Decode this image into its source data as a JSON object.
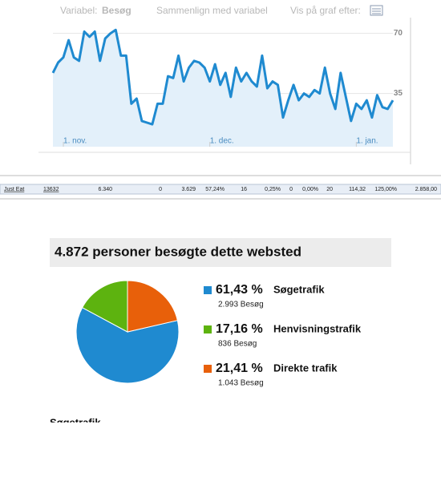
{
  "toolbar": {
    "variable_label": "Variabel:",
    "variable_value": "Besøg",
    "compare": "Sammenlign med variabel",
    "graph_by": "Vis på graf efter:"
  },
  "chart_data": [
    {
      "type": "line",
      "categories": [
        null,
        null,
        "1. nov.",
        null,
        null,
        null,
        null,
        null,
        null,
        null,
        null,
        null,
        null,
        null,
        null,
        null,
        null,
        null,
        null,
        null,
        null,
        null,
        null,
        null,
        null,
        null,
        null,
        null,
        null,
        null,
        "1. dec.",
        null,
        null,
        null,
        null,
        null,
        null,
        null,
        null,
        null,
        null,
        null,
        null,
        null,
        null,
        null,
        null,
        null,
        null,
        null,
        null,
        null,
        null,
        null,
        null,
        null,
        null,
        null,
        "1. jan.",
        null,
        null,
        null,
        null,
        null,
        null,
        null
      ],
      "values": [
        47,
        53,
        56,
        66,
        56,
        54,
        71,
        68,
        71,
        54,
        67,
        70,
        72,
        57,
        57,
        29,
        32,
        19,
        18,
        17,
        29,
        29,
        45,
        44,
        57,
        42,
        50,
        54,
        53,
        50,
        42,
        52,
        40,
        47,
        33,
        50,
        42,
        47,
        42,
        39,
        57,
        38,
        42,
        40,
        21,
        31,
        40,
        31,
        35,
        33,
        37,
        35,
        50,
        35,
        26,
        47,
        33,
        19,
        29,
        26,
        31,
        21,
        34,
        27,
        26,
        31
      ],
      "color": "#1f8ad0",
      "ylim": [
        4,
        74
      ],
      "yticks": [
        35,
        70
      ]
    },
    {
      "type": "pie",
      "title": "4.872 personer besøgte dette websted",
      "categories": [
        "Søgetrafik",
        "Henvisningstrafik",
        "Direkte trafik"
      ],
      "values": [
        61.43,
        17.16,
        21.41
      ],
      "value_labels": [
        "61,43 %",
        "17,16 %",
        "21,41 %"
      ],
      "visits": [
        "2.993 Besøg",
        "836 Besøg",
        "1.043 Besøg"
      ],
      "colors": [
        "#1f8ad0",
        "#5db30f",
        "#e8600a"
      ]
    }
  ],
  "table": {
    "rows": [
      [
        "Just Eat",
        "13632",
        "6.340",
        "0",
        "3.629",
        "57,24%",
        "16",
        "0,25%",
        "0",
        "0,00%",
        "20",
        "114,32",
        "125,00%",
        "2.858,00"
      ]
    ]
  },
  "next_section": "Søgetrafik"
}
